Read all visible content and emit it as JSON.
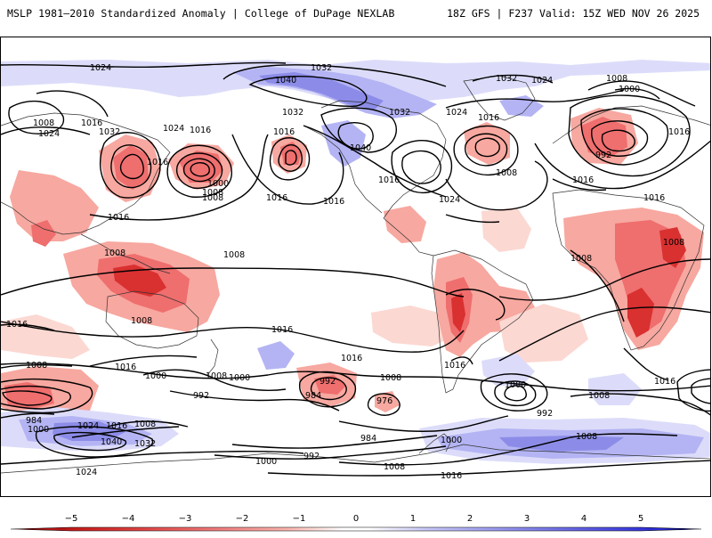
{
  "header": {
    "left_title": "MSLP 1981–2010 Standardized Anomaly | College of DuPage NEXLAB",
    "right_title": "18Z GFS | F237 Valid: 15Z WED NOV 26 2025"
  },
  "colorbar": {
    "labels": [
      "−5",
      "−4",
      "−3",
      "−2",
      "−1",
      "0",
      "1",
      "2",
      "3",
      "4",
      "5"
    ],
    "colors": [
      "#b40000",
      "#d93030",
      "#ef6e6e",
      "#f7a8a0",
      "#fcd8d2",
      "#ffffff",
      "#dcdcfa",
      "#b4b4f4",
      "#8c8ce8",
      "#5a5ae0",
      "#1e1ed8"
    ]
  },
  "contour_labels": [
    {
      "text": "1024"
    },
    {
      "text": "1032"
    },
    {
      "text": "1040"
    },
    {
      "text": "1032"
    },
    {
      "text": "1024"
    },
    {
      "text": "1008"
    },
    {
      "text": "1000"
    },
    {
      "text": "1008"
    },
    {
      "text": "1016"
    },
    {
      "text": "1024"
    },
    {
      "text": "1032"
    },
    {
      "text": "1024"
    },
    {
      "text": "1016"
    },
    {
      "text": "1016"
    },
    {
      "text": "1008"
    },
    {
      "text": "1000"
    },
    {
      "text": "1008"
    },
    {
      "text": "1016"
    },
    {
      "text": "1032"
    },
    {
      "text": "1032"
    },
    {
      "text": "1024"
    },
    {
      "text": "1016"
    },
    {
      "text": "1040"
    },
    {
      "text": "1016"
    },
    {
      "text": "1024"
    },
    {
      "text": "1016"
    },
    {
      "text": "1016"
    },
    {
      "text": "1008"
    },
    {
      "text": "992"
    },
    {
      "text": "1016"
    },
    {
      "text": "1016"
    },
    {
      "text": "1016"
    },
    {
      "text": "1008"
    },
    {
      "text": "1008"
    },
    {
      "text": "1008"
    },
    {
      "text": "1016"
    },
    {
      "text": "1008"
    },
    {
      "text": "1008"
    },
    {
      "text": "1016"
    },
    {
      "text": "1016"
    },
    {
      "text": "1000"
    },
    {
      "text": "1016"
    },
    {
      "text": "1008"
    },
    {
      "text": "1016"
    },
    {
      "text": "1000"
    },
    {
      "text": "992"
    },
    {
      "text": "1008"
    },
    {
      "text": "992"
    },
    {
      "text": "984"
    },
    {
      "text": "1008"
    },
    {
      "text": "976"
    },
    {
      "text": "1016"
    },
    {
      "text": "1000"
    },
    {
      "text": "992"
    },
    {
      "text": "1008"
    },
    {
      "text": "1016"
    },
    {
      "text": "984"
    },
    {
      "text": "1000"
    },
    {
      "text": "1024"
    },
    {
      "text": "1016"
    },
    {
      "text": "1008"
    },
    {
      "text": "1040"
    },
    {
      "text": "1032"
    },
    {
      "text": "984"
    },
    {
      "text": "1000"
    },
    {
      "text": "1000"
    },
    {
      "text": "992"
    },
    {
      "text": "1008"
    },
    {
      "text": "1016"
    },
    {
      "text": "1024"
    },
    {
      "text": "1008"
    }
  ]
}
